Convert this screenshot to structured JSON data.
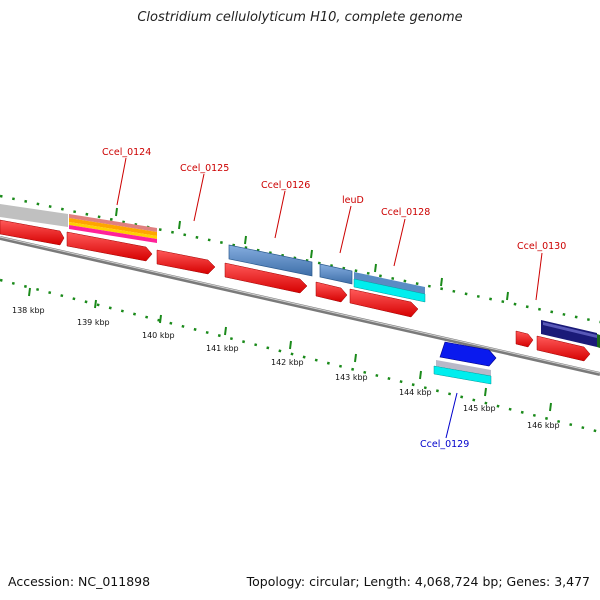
{
  "title": "Clostridium cellulolyticum H10, complete genome",
  "footer": {
    "accession": "Accession: NC_011898",
    "summary": "Topology: circular; Length: 4,068,724 bp; Genes: 3,477"
  },
  "scale_labels": [
    "138 kbp",
    "139 kbp",
    "140 kbp",
    "141 kbp",
    "142 kbp",
    "143 kbp",
    "144 kbp",
    "145 kbp",
    "146 kbp"
  ],
  "gene_labels": {
    "Ccel_0124": "Ccel_0124",
    "Ccel_0125": "Ccel_0125",
    "Ccel_0126": "Ccel_0126",
    "leuD": "leuD",
    "Ccel_0128": "Ccel_0128",
    "Ccel_0130": "Ccel_0130",
    "Ccel_0129": "Ccel_0129"
  },
  "colors": {
    "forward_label": "#cc0000",
    "reverse_label": "#0000cc",
    "cds": "#ff0000",
    "backbone": "#888888",
    "tick": "#1a8a1a"
  }
}
